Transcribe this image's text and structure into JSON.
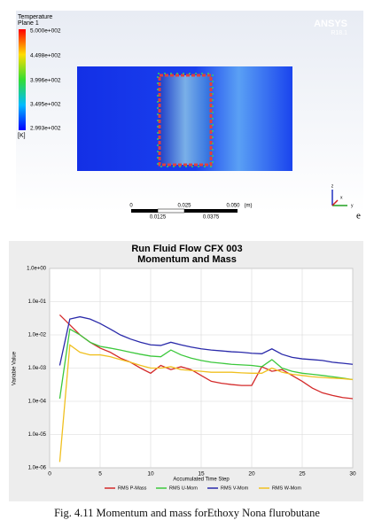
{
  "contour": {
    "legend_title": "Temperature",
    "legend_subtitle": "Plane 1",
    "legend_labels": [
      "5.000e+002",
      "4.498e+002",
      "3.996e+002",
      "3.495e+002",
      "2.993e+002"
    ],
    "unit": "[K]",
    "brand": "ANSYS",
    "version": "R18.1",
    "scale_top": [
      "0",
      "0.025",
      "0.050",
      "(m)"
    ],
    "scale_bottom": [
      "0.0125",
      "0.0375"
    ],
    "axis_letters": [
      "z",
      "y",
      "x"
    ],
    "stray": "e"
  },
  "chart_data": {
    "type": "line",
    "title": "Run Fluid Flow CFX 003",
    "subtitle": "Momentum and Mass",
    "xlabel": "Accumulated Time Step",
    "ylabel": "Variable Value",
    "log_y": true,
    "grid": true,
    "legend": "bottom",
    "x": [
      1,
      2,
      3,
      4,
      5,
      6,
      7,
      8,
      9,
      10,
      11,
      12,
      13,
      14,
      15,
      16,
      17,
      18,
      19,
      20,
      21,
      22,
      23,
      24,
      25,
      26,
      27,
      28,
      29,
      30
    ],
    "xlim": [
      0,
      30
    ],
    "xticks": [
      0,
      5,
      10,
      15,
      20,
      25,
      30
    ],
    "ylim": [
      1e-06,
      1
    ],
    "yticks": [
      {
        "value": 1,
        "label": "1.0e+00"
      },
      {
        "value": 0.1,
        "label": "1.0e-01"
      },
      {
        "value": 0.01,
        "label": "1.0e-02"
      },
      {
        "value": 0.001,
        "label": "1.0e-03"
      },
      {
        "value": 0.0001,
        "label": "1.0e-04"
      },
      {
        "value": 1e-05,
        "label": "1.0e-05"
      },
      {
        "value": 1e-06,
        "label": "1.0e-06"
      }
    ],
    "series": [
      {
        "name": "RMS P-Mass",
        "color": "#d42a2a",
        "values": [
          0.04,
          0.02,
          0.01,
          0.006,
          0.004,
          0.003,
          0.002,
          0.0015,
          0.001,
          0.0007,
          0.0012,
          0.0009,
          0.0011,
          0.0009,
          0.0006,
          0.0004,
          0.00035,
          0.00032,
          0.0003,
          0.0003,
          0.0011,
          0.0008,
          0.0009,
          0.0006,
          0.0004,
          0.00025,
          0.00018,
          0.00015,
          0.00013,
          0.00012
        ]
      },
      {
        "name": "RMS U-Mom",
        "color": "#3cc83c",
        "values": [
          0.00012,
          0.015,
          0.01,
          0.006,
          0.0045,
          0.004,
          0.0035,
          0.003,
          0.0026,
          0.0023,
          0.0022,
          0.0035,
          0.0025,
          0.002,
          0.0017,
          0.0015,
          0.0014,
          0.0013,
          0.00125,
          0.0012,
          0.0011,
          0.0018,
          0.001,
          0.0008,
          0.0007,
          0.00065,
          0.0006,
          0.00055,
          0.0005,
          0.00045
        ]
      },
      {
        "name": "RMS V-Mom",
        "color": "#2a2aaa",
        "values": [
          0.0012,
          0.03,
          0.035,
          0.03,
          0.022,
          0.015,
          0.01,
          0.0075,
          0.006,
          0.005,
          0.0048,
          0.006,
          0.005,
          0.0043,
          0.0038,
          0.0035,
          0.0033,
          0.0031,
          0.003,
          0.0028,
          0.0027,
          0.0038,
          0.0026,
          0.0021,
          0.0019,
          0.0018,
          0.0017,
          0.0015,
          0.0014,
          0.0013
        ]
      },
      {
        "name": "RMS W-Mom",
        "color": "#f0c020",
        "values": [
          1.5e-06,
          0.005,
          0.003,
          0.0025,
          0.0025,
          0.0022,
          0.0018,
          0.0015,
          0.0012,
          0.001,
          0.001,
          0.0011,
          0.0009,
          0.00085,
          0.0008,
          0.00075,
          0.00075,
          0.00075,
          0.00072,
          0.0007,
          0.0007,
          0.001,
          0.00075,
          0.00065,
          0.0006,
          0.00055,
          0.00052,
          0.0005,
          0.00048,
          0.00045
        ]
      }
    ]
  },
  "caption": "Fig. 4.11 Momentum and mass forEthoxy Nona flurobutane"
}
